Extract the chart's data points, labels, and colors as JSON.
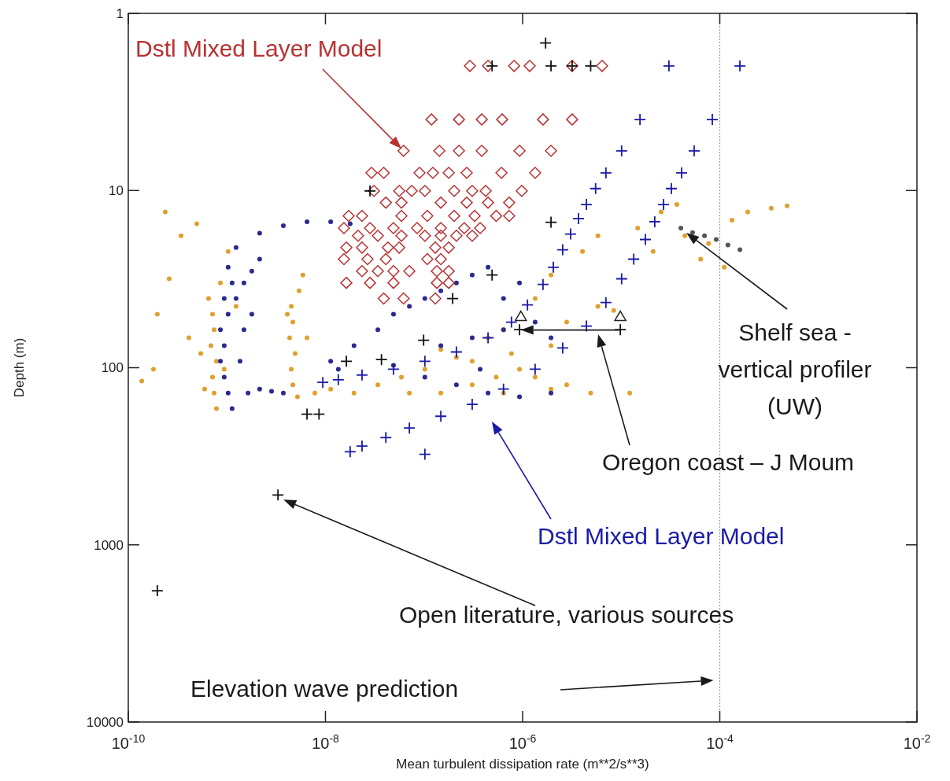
{
  "chart_data": {
    "type": "scatter",
    "xlabel": "Mean turbulent dissipation rate (m**2/s**3)",
    "ylabel": "Depth (m)",
    "log": "xy",
    "xlim": [
      1e-10,
      0.01
    ],
    "ylim": [
      10000,
      1
    ],
    "xticks": [
      {
        "value": 1e-10,
        "label": "10$^{-10}$"
      },
      {
        "value": 1e-08,
        "label": "10$^{-8}$"
      },
      {
        "value": 1e-06,
        "label": "10$^{-6}$"
      },
      {
        "value": 0.0001,
        "label": "10$^{-4}$"
      },
      {
        "value": 0.01,
        "label": "10$^{-2}$"
      }
    ],
    "yticks": [
      1,
      10,
      100,
      1000,
      10000
    ],
    "series": [
      {
        "marker": "circle",
        "color": "#e0a030",
        "x": [
          2.37e-10,
          3.43e-10,
          4.95e-10,
          2.6e-10,
          1.97e-10,
          1.37e-10,
          1.8e-10,
          4.12e-10,
          5.43e-10,
          7.15e-10,
          7.42e-10,
          6.89e-10,
          7.84e-10,
          7.15e-10,
          7.42e-10,
          7.84e-10,
          6.52e-10,
          8.6e-10,
          1.03e-09,
          1.24e-09,
          5.95e-10,
          9.4e-10,
          4.5e-09,
          4.67e-09,
          4.33e-09,
          4.93e-09,
          4.5e-09,
          4.67e-09,
          5.2e-09,
          5.4e-09,
          5.9e-09,
          4.1e-09,
          6.5e-09,
          7.8e-09,
          1.13e-08,
          1.95e-08,
          3.4e-08,
          5.9e-08,
          1.02e-07,
          1.48e-07,
          2.13e-07,
          3.08e-07,
          4.46e-07,
          6.4e-07,
          7.7e-07,
          9.3e-07,
          1.34e-06,
          1.94e-06,
          2.8e-06,
          4.9e-06,
          1.94e-06,
          2.8e-06,
          5.8e-06,
          8.4e-06,
          1.22e-05,
          1.48e-07,
          3.08e-07,
          5.4e-07,
          7.1e-08,
          6.4e-07,
          1.34e-06,
          1.94e-06,
          4.05e-06,
          5.8e-06,
          1.47e-05,
          2.54e-05,
          4.42e-05,
          7.7e-05,
          0.000133,
          0.000192,
          0.000333,
          0.000482,
          6.4e-05,
          0.000111,
          2.11e-05,
          3.67e-05
        ],
        "values": [
          13.2,
          18.0,
          15.4,
          31.5,
          49.9,
          119,
          102,
          67.8,
          83.2,
          49.9,
          61.1,
          75.1,
          92,
          113,
          139,
          170,
          40.7,
          33.2,
          22.1,
          45.1,
          132,
          102,
          45.1,
          55.3,
          67.8,
          83.2,
          102,
          125,
          146,
          36.8,
          30.0,
          49.9,
          67.8,
          139,
          132,
          139,
          125,
          113,
          102,
          139,
          87.5,
          125,
          67.8,
          61.1,
          83.2,
          102,
          113,
          132,
          125,
          139,
          75.1,
          55.3,
          45.1,
          47.5,
          139,
          79,
          92,
          113,
          139,
          139,
          40.7,
          30.0,
          22.1,
          18.0,
          16.3,
          13.2,
          18.0,
          19.9,
          14.7,
          13.2,
          12.6,
          12.2,
          24.4,
          27.1,
          22.1,
          12.0
        ]
      },
      {
        "marker": "circle",
        "color": "#2a2a90",
        "x": [
          1.24e-09,
          2.15e-09,
          3.74e-09,
          6.5e-09,
          1.13e-08,
          1.78e-08,
          1.03e-09,
          1.13e-09,
          9.4e-10,
          1.03e-09,
          8.6e-10,
          9.4e-10,
          8.6e-10,
          9.4e-10,
          1.03e-09,
          1.13e-09,
          1.24e-09,
          1.49e-09,
          1.79e-09,
          2.15e-09,
          1.49e-09,
          1.79e-09,
          1.36e-09,
          1.64e-09,
          2.15e-09,
          2.84e-09,
          3.74e-09,
          1.13e-08,
          1.95e-08,
          3.4e-08,
          4.9e-08,
          7.1e-08,
          1.02e-07,
          1.48e-07,
          2.13e-07,
          3.08e-07,
          4.46e-07,
          1.48e-07,
          3.08e-07,
          6.4e-07,
          1.34e-06,
          4.9e-08,
          1.02e-07,
          2.13e-07,
          4.46e-07,
          9.3e-07,
          1.94e-06,
          1.35e-08,
          6.4e-07,
          9.3e-07,
          3.71e-07,
          1.94e-06
        ],
        "values": [
          21.0,
          17.4,
          15.8,
          15.0,
          15.0,
          15.4,
          27.1,
          33.2,
          40.7,
          49.9,
          61.1,
          75.1,
          92,
          113,
          139,
          170,
          40.7,
          33.2,
          28.5,
          24.4,
          61.1,
          49.9,
          92,
          139,
          132,
          136,
          139,
          92,
          75.1,
          61.1,
          49.9,
          45.1,
          40.7,
          36.8,
          33.2,
          30.0,
          27.1,
          75.1,
          67.8,
          61.1,
          55.3,
          97,
          113,
          125,
          139,
          146,
          139,
          102,
          40.7,
          33.2,
          102,
          67.8
        ]
      },
      {
        "marker": "circle",
        "color": "#555555",
        "x": [
          4.03e-05,
          5.3e-05,
          7e-05,
          9.2e-05,
          0.000121,
          0.00016
        ],
        "values": [
          16.3,
          17.3,
          18.0,
          18.9,
          20.3,
          21.6
        ]
      },
      {
        "marker": "diamond",
        "color": "#b83232",
        "name": "Dstl Mixed Layer Model",
        "x": [
          2.92e-07,
          4.46e-07,
          8.2e-07,
          1.18e-06,
          3.18e-06,
          6.4e-06,
          1.19e-07,
          2.26e-07,
          3.85e-07,
          6.2e-07,
          1.61e-06,
          3.18e-06,
          6.2e-08,
          1.43e-07,
          2.26e-07,
          3.85e-07,
          9.3e-07,
          1.94e-06,
          2.93e-08,
          3.9e-08,
          9e-08,
          1.23e-07,
          1.78e-07,
          2.71e-07,
          6.1e-07,
          1.34e-06,
          3.1e-08,
          5.6e-08,
          7.5e-08,
          1.02e-07,
          2.02e-07,
          3.08e-07,
          4.22e-07,
          9.8e-07,
          4.1e-08,
          5.9e-08,
          1.48e-07,
          2.71e-07,
          4.46e-07,
          7.3e-07,
          1.72e-08,
          2.35e-08,
          5.9e-08,
          1.08e-07,
          2.02e-07,
          3.26e-07,
          5.4e-07,
          7.3e-07,
          1.54e-08,
          2.83e-08,
          4.9e-08,
          8.5e-08,
          1.48e-07,
          2.56e-07,
          3.71e-07,
          2.14e-08,
          3.4e-08,
          5.9e-08,
          1.02e-07,
          1.48e-07,
          2.13e-07,
          3.08e-07,
          1.63e-08,
          2.35e-08,
          4.3e-08,
          5.6e-08,
          1.3e-07,
          1.78e-07,
          1.54e-08,
          2.67e-08,
          4.1e-08,
          1.08e-07,
          1.48e-07,
          2.35e-08,
          3.4e-08,
          4.9e-08,
          7.1e-08,
          1.35e-07,
          1.78e-07,
          1.63e-08,
          2.83e-08,
          4.9e-08,
          1.35e-07,
          1.78e-07,
          3.9e-08,
          6.2e-08,
          1.3e-07
        ],
        "values": [
          1.98,
          1.98,
          1.98,
          1.98,
          1.98,
          1.98,
          3.97,
          3.97,
          3.97,
          3.97,
          3.97,
          3.97,
          5.97,
          5.97,
          5.97,
          5.97,
          5.97,
          5.97,
          7.95,
          7.95,
          7.95,
          7.95,
          7.95,
          7.95,
          7.95,
          7.95,
          10.05,
          10.05,
          10.05,
          10.05,
          10.05,
          10.05,
          10.05,
          10.05,
          11.7,
          11.7,
          11.7,
          11.7,
          11.7,
          11.7,
          13.9,
          13.9,
          13.9,
          13.9,
          13.9,
          13.9,
          13.9,
          13.9,
          16.3,
          16.3,
          16.3,
          16.3,
          16.3,
          16.3,
          16.3,
          18.0,
          18.0,
          18.0,
          18.0,
          18.0,
          18.0,
          18.0,
          21.0,
          21.0,
          21.0,
          21.0,
          21.0,
          21.0,
          24.4,
          24.4,
          24.4,
          24.4,
          24.4,
          28.5,
          28.5,
          28.5,
          28.5,
          28.5,
          28.5,
          33.2,
          33.2,
          33.2,
          33.2,
          33.2,
          40.7,
          40.7,
          40.7
        ]
      },
      {
        "marker": "cross",
        "color": "#1a1aa8",
        "name": "Dstl Mixed Layer Model",
        "x": [
          3.05e-05,
          1.55e-05,
          1.01e-05,
          7e-06,
          5.5e-06,
          4.44e-06,
          3.69e-06,
          3.07e-06,
          2.55e-06,
          2.05e-06,
          1.61e-06,
          1.12e-06,
          7.7e-07,
          4.46e-07,
          2.13e-07,
          1.02e-07,
          4.9e-08,
          2.35e-08,
          1.35e-08,
          9.4e-09,
          0.00016,
          8.4e-05,
          5.5e-05,
          4.1e-05,
          3.23e-05,
          2.69e-05,
          2.19e-05,
          1.76e-05,
          1.34e-05,
          1.01e-05,
          7e-06,
          4.44e-06,
          2.55e-06,
          1.34e-06,
          6.4e-07,
          3.08e-07,
          1.48e-07,
          7.1e-08,
          4.1e-08,
          2.35e-08,
          1.78e-08,
          1.02e-07
        ],
        "values": [
          1.98,
          3.97,
          5.97,
          7.95,
          9.75,
          12.0,
          14.4,
          17.6,
          21.6,
          27.1,
          33.9,
          44.2,
          55.3,
          67.8,
          81.5,
          92,
          102,
          110,
          117,
          121,
          1.98,
          3.97,
          5.97,
          7.95,
          9.75,
          12.0,
          15.0,
          18.9,
          24.4,
          31.5,
          42.9,
          58.2,
          77.4,
          102,
          132,
          161,
          188,
          219,
          248,
          277,
          298,
          308
        ]
      },
      {
        "marker": "cross",
        "color": "#111111",
        "x": [
          1.71e-06,
          4.9e-07,
          1.94e-06,
          3.18e-06,
          4.9e-06,
          2.83e-08,
          1.94e-06,
          4.9e-07,
          1.95e-07,
          9.9e-08,
          1.63e-08,
          3.7e-08,
          6.5e-09,
          8.6e-09,
          3.3e-09,
          1.97e-10,
          9.3e-07,
          9.8e-06
        ],
        "values": [
          1.47,
          1.98,
          1.98,
          1.98,
          1.98,
          10.05,
          15.1,
          30.0,
          40.7,
          70,
          92,
          90,
          183,
          183,
          523,
          1816,
          61,
          61
        ]
      },
      {
        "marker": "triangle",
        "color": "#222222",
        "x": [
          9.6e-07,
          9.8e-06
        ],
        "values": [
          51.5,
          51.5
        ]
      }
    ],
    "ref_lines": [
      {
        "axis": "x",
        "value": 0.0001,
        "line_style": "dotted",
        "color": "#999999"
      }
    ],
    "annotations": [
      "Shelf sea  -\nvertical profiler\n(UW)",
      "Oregon coast – J Moum",
      "Open literature, various sources",
      "Elevation wave prediction"
    ]
  }
}
